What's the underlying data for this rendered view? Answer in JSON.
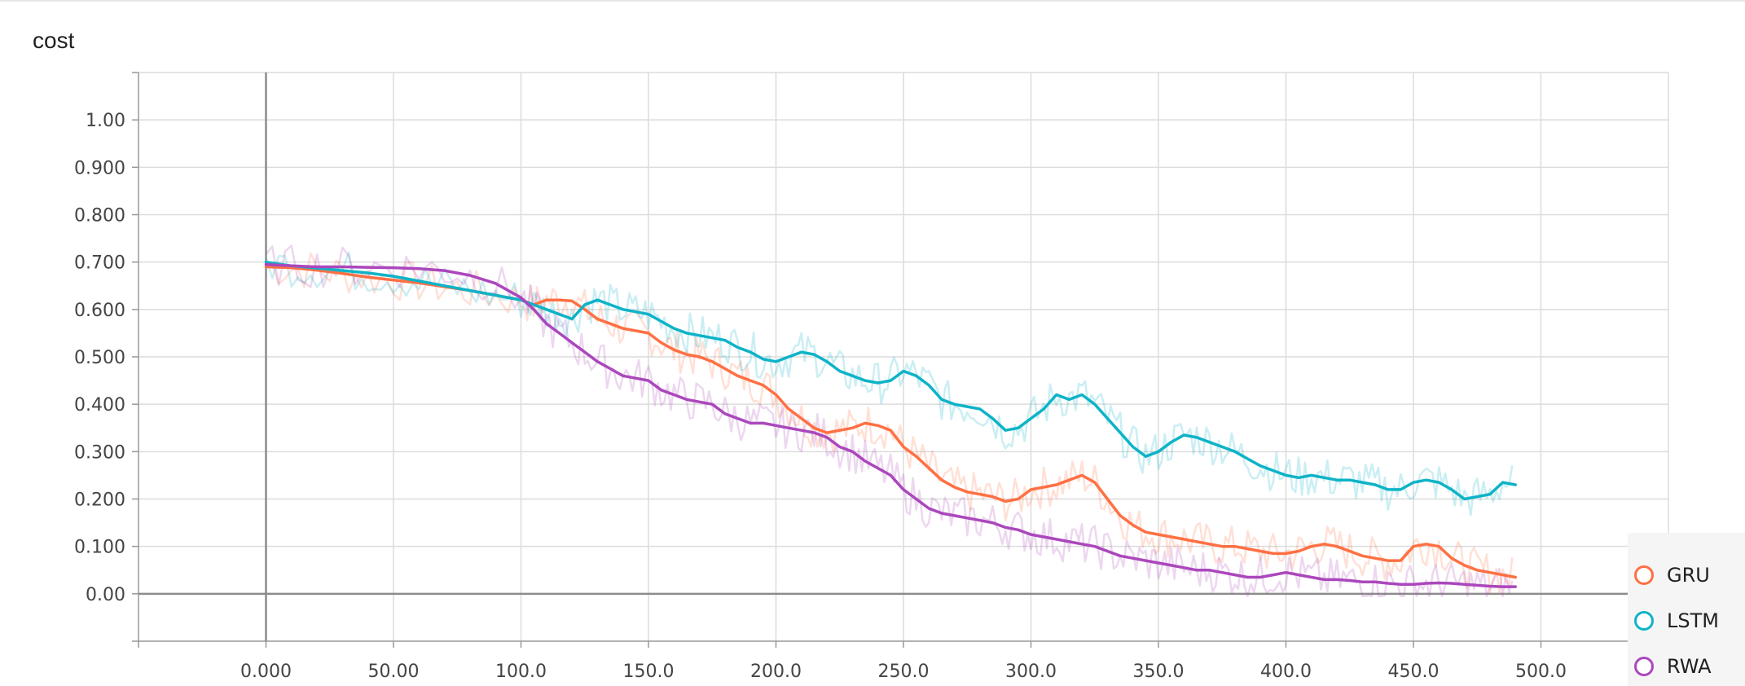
{
  "chart_data": {
    "type": "line",
    "title": "cost",
    "xlabel": "",
    "ylabel": "",
    "xlim": [
      -50,
      550
    ],
    "ylim": [
      -0.1,
      1.1
    ],
    "x_ticks": [
      "0.000",
      "50.00",
      "100.0",
      "150.0",
      "200.0",
      "250.0",
      "300.0",
      "350.0",
      "400.0",
      "450.0",
      "500.0"
    ],
    "x_tick_values": [
      0,
      50,
      100,
      150,
      200,
      250,
      300,
      350,
      400,
      450,
      500
    ],
    "y_ticks": [
      "0.00",
      "0.100",
      "0.200",
      "0.300",
      "0.400",
      "0.500",
      "0.600",
      "0.700",
      "0.800",
      "0.900",
      "1.00"
    ],
    "y_tick_values": [
      0,
      0.1,
      0.2,
      0.3,
      0.4,
      0.5,
      0.6,
      0.7,
      0.8,
      0.9,
      1.0
    ],
    "grid": true,
    "legend_position": "bottom-right",
    "series": [
      {
        "name": "GRU",
        "color": "#ff7043",
        "x": [
          0,
          10,
          20,
          30,
          40,
          50,
          60,
          70,
          80,
          90,
          100,
          105,
          110,
          115,
          120,
          125,
          130,
          135,
          140,
          145,
          150,
          155,
          160,
          165,
          170,
          175,
          180,
          185,
          190,
          195,
          200,
          205,
          210,
          215,
          220,
          225,
          230,
          235,
          240,
          245,
          250,
          255,
          260,
          265,
          270,
          275,
          280,
          285,
          290,
          295,
          300,
          305,
          310,
          315,
          320,
          325,
          330,
          335,
          340,
          345,
          350,
          355,
          360,
          365,
          370,
          375,
          380,
          385,
          390,
          395,
          400,
          405,
          410,
          415,
          420,
          425,
          430,
          435,
          440,
          445,
          450,
          455,
          460,
          465,
          470,
          475,
          480,
          485,
          490
        ],
        "y": [
          0.69,
          0.688,
          0.683,
          0.676,
          0.668,
          0.662,
          0.656,
          0.648,
          0.64,
          0.63,
          0.62,
          0.61,
          0.62,
          0.62,
          0.618,
          0.6,
          0.58,
          0.57,
          0.56,
          0.555,
          0.55,
          0.53,
          0.515,
          0.505,
          0.5,
          0.49,
          0.475,
          0.46,
          0.45,
          0.44,
          0.42,
          0.39,
          0.37,
          0.35,
          0.34,
          0.345,
          0.35,
          0.36,
          0.355,
          0.345,
          0.31,
          0.29,
          0.265,
          0.24,
          0.225,
          0.215,
          0.21,
          0.205,
          0.195,
          0.2,
          0.22,
          0.225,
          0.23,
          0.24,
          0.25,
          0.235,
          0.2,
          0.165,
          0.145,
          0.13,
          0.125,
          0.12,
          0.115,
          0.11,
          0.105,
          0.1,
          0.1,
          0.095,
          0.09,
          0.085,
          0.085,
          0.09,
          0.1,
          0.105,
          0.1,
          0.09,
          0.08,
          0.075,
          0.07,
          0.07,
          0.1,
          0.105,
          0.1,
          0.075,
          0.06,
          0.05,
          0.045,
          0.04,
          0.035
        ]
      },
      {
        "name": "LSTM",
        "color": "#0eb3c7",
        "x": [
          0,
          10,
          20,
          30,
          40,
          50,
          60,
          70,
          80,
          90,
          100,
          105,
          110,
          115,
          120,
          125,
          130,
          135,
          140,
          145,
          150,
          155,
          160,
          165,
          170,
          175,
          180,
          185,
          190,
          195,
          200,
          205,
          210,
          215,
          220,
          225,
          230,
          235,
          240,
          245,
          250,
          255,
          260,
          265,
          270,
          275,
          280,
          285,
          290,
          295,
          300,
          305,
          310,
          315,
          320,
          325,
          330,
          335,
          340,
          345,
          350,
          355,
          360,
          365,
          370,
          375,
          380,
          385,
          390,
          395,
          400,
          405,
          410,
          415,
          420,
          425,
          430,
          435,
          440,
          445,
          450,
          455,
          460,
          465,
          470,
          475,
          480,
          485,
          490
        ],
        "y": [
          0.7,
          0.692,
          0.687,
          0.682,
          0.677,
          0.67,
          0.66,
          0.65,
          0.64,
          0.63,
          0.62,
          0.61,
          0.6,
          0.59,
          0.58,
          0.61,
          0.62,
          0.61,
          0.6,
          0.595,
          0.59,
          0.575,
          0.56,
          0.55,
          0.545,
          0.54,
          0.535,
          0.52,
          0.51,
          0.495,
          0.49,
          0.5,
          0.51,
          0.505,
          0.49,
          0.47,
          0.46,
          0.45,
          0.445,
          0.45,
          0.47,
          0.46,
          0.44,
          0.41,
          0.4,
          0.395,
          0.39,
          0.37,
          0.345,
          0.35,
          0.37,
          0.39,
          0.42,
          0.41,
          0.42,
          0.4,
          0.37,
          0.34,
          0.31,
          0.29,
          0.3,
          0.32,
          0.335,
          0.33,
          0.32,
          0.31,
          0.3,
          0.285,
          0.27,
          0.26,
          0.25,
          0.245,
          0.25,
          0.245,
          0.24,
          0.24,
          0.235,
          0.23,
          0.22,
          0.22,
          0.235,
          0.24,
          0.235,
          0.22,
          0.2,
          0.205,
          0.21,
          0.235,
          0.23
        ]
      },
      {
        "name": "RWA",
        "color": "#ab47bc",
        "x": [
          0,
          10,
          20,
          30,
          40,
          50,
          60,
          70,
          80,
          90,
          100,
          105,
          110,
          115,
          120,
          125,
          130,
          135,
          140,
          145,
          150,
          155,
          160,
          165,
          170,
          175,
          180,
          185,
          190,
          195,
          200,
          205,
          210,
          215,
          220,
          225,
          230,
          235,
          240,
          245,
          250,
          255,
          260,
          265,
          270,
          275,
          280,
          285,
          290,
          295,
          300,
          305,
          310,
          315,
          320,
          325,
          330,
          335,
          340,
          345,
          350,
          355,
          360,
          365,
          370,
          375,
          380,
          385,
          390,
          395,
          400,
          405,
          410,
          415,
          420,
          425,
          430,
          435,
          440,
          445,
          450,
          455,
          460,
          465,
          470,
          475,
          480,
          485,
          490
        ],
        "y": [
          0.695,
          0.692,
          0.69,
          0.69,
          0.689,
          0.688,
          0.686,
          0.682,
          0.672,
          0.655,
          0.625,
          0.6,
          0.57,
          0.55,
          0.53,
          0.51,
          0.49,
          0.475,
          0.46,
          0.455,
          0.45,
          0.43,
          0.42,
          0.41,
          0.405,
          0.4,
          0.38,
          0.37,
          0.36,
          0.36,
          0.355,
          0.35,
          0.345,
          0.34,
          0.33,
          0.31,
          0.3,
          0.28,
          0.265,
          0.25,
          0.22,
          0.2,
          0.18,
          0.17,
          0.165,
          0.16,
          0.155,
          0.15,
          0.14,
          0.135,
          0.125,
          0.12,
          0.115,
          0.11,
          0.105,
          0.1,
          0.09,
          0.08,
          0.075,
          0.07,
          0.065,
          0.06,
          0.055,
          0.05,
          0.05,
          0.045,
          0.04,
          0.035,
          0.035,
          0.04,
          0.045,
          0.04,
          0.035,
          0.03,
          0.03,
          0.028,
          0.025,
          0.025,
          0.022,
          0.02,
          0.02,
          0.022,
          0.023,
          0.022,
          0.02,
          0.018,
          0.016,
          0.015,
          0.015
        ]
      }
    ]
  }
}
